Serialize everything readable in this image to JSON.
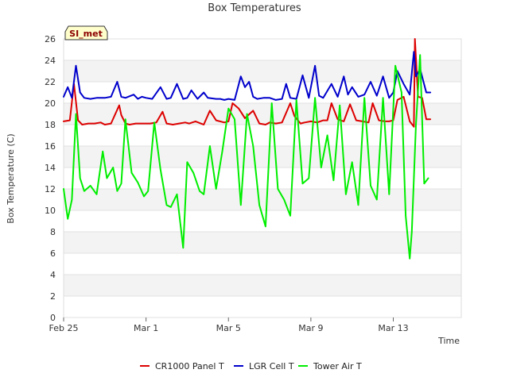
{
  "chart_data": {
    "type": "line",
    "title": "Box Temperatures",
    "xlabel": "Time",
    "ylabel": "Box Temperature (C)",
    "badge": "SI_met",
    "xlim": [
      "Feb 25",
      "Mar 16"
    ],
    "ylim": [
      0,
      26
    ],
    "y_ticks": [
      0,
      2,
      4,
      6,
      8,
      10,
      12,
      14,
      16,
      18,
      20,
      22,
      24,
      26
    ],
    "x_ticks": [
      {
        "label": "Feb 25",
        "day": 0
      },
      {
        "label": "Mar 1",
        "day": 4
      },
      {
        "label": "Mar 5",
        "day": 8
      },
      {
        "label": "Mar 9",
        "day": 12
      },
      {
        "label": "Mar 13",
        "day": 16
      }
    ],
    "x_unit": "days since Feb 25",
    "background_bands": "alternating grey",
    "legend_position": "bottom-center",
    "series": [
      {
        "name": "CR1000 Panel T",
        "color": "#dd0000",
        "x": [
          0.0,
          0.3,
          0.5,
          0.7,
          0.9,
          1.2,
          1.5,
          1.8,
          2.0,
          2.3,
          2.7,
          2.8,
          3.0,
          3.2,
          3.5,
          3.8,
          4.2,
          4.5,
          4.8,
          5.0,
          5.3,
          5.6,
          5.9,
          6.1,
          6.4,
          6.8,
          7.1,
          7.4,
          7.8,
          8.0,
          8.2,
          8.5,
          8.8,
          9.2,
          9.5,
          9.8,
          10.0,
          10.3,
          10.6,
          11.0,
          11.2,
          11.5,
          11.7,
          12.0,
          12.3,
          12.6,
          12.8,
          13.0,
          13.3,
          13.6,
          13.9,
          14.2,
          14.5,
          14.8,
          15.0,
          15.3,
          15.6,
          15.8,
          16.0,
          16.2,
          16.5,
          16.8,
          17.0,
          17.05,
          17.2,
          17.4,
          17.6,
          17.8
        ],
        "y": [
          18.3,
          18.4,
          21.8,
          18.4,
          18.0,
          18.1,
          18.1,
          18.2,
          18.0,
          18.1,
          19.8,
          18.9,
          18.1,
          18.0,
          18.1,
          18.1,
          18.1,
          18.2,
          19.2,
          18.1,
          18.0,
          18.1,
          18.2,
          18.1,
          18.3,
          18.0,
          19.3,
          18.4,
          18.2,
          18.3,
          20.0,
          19.5,
          18.6,
          19.3,
          18.1,
          18.0,
          18.2,
          18.1,
          18.2,
          20.0,
          18.8,
          18.1,
          18.2,
          18.3,
          18.2,
          18.4,
          18.4,
          20.0,
          18.5,
          18.3,
          19.9,
          18.4,
          18.3,
          18.2,
          20.0,
          18.4,
          18.3,
          18.3,
          18.4,
          20.3,
          20.6,
          18.3,
          17.8,
          26.0,
          20.6,
          20.5,
          18.5,
          18.5
        ]
      },
      {
        "name": "LGR Cell T",
        "color": "#0000cc",
        "x": [
          0.0,
          0.2,
          0.4,
          0.6,
          0.8,
          1.0,
          1.3,
          1.6,
          2.0,
          2.3,
          2.6,
          2.8,
          3.0,
          3.4,
          3.6,
          3.8,
          4.0,
          4.3,
          4.7,
          5.0,
          5.2,
          5.5,
          5.8,
          6.0,
          6.2,
          6.5,
          6.8,
          7.0,
          7.4,
          7.6,
          7.8,
          8.0,
          8.3,
          8.6,
          8.8,
          9.0,
          9.2,
          9.4,
          9.7,
          10.0,
          10.3,
          10.6,
          10.8,
          11.0,
          11.3,
          11.6,
          11.9,
          12.2,
          12.4,
          12.6,
          13.0,
          13.3,
          13.6,
          13.8,
          14.0,
          14.3,
          14.6,
          14.9,
          15.2,
          15.5,
          15.8,
          16.0,
          16.2,
          16.5,
          16.8,
          17.0,
          17.1,
          17.3,
          17.6,
          17.8
        ],
        "y": [
          20.6,
          21.5,
          20.5,
          23.5,
          21.0,
          20.5,
          20.4,
          20.5,
          20.5,
          20.6,
          22.0,
          20.6,
          20.5,
          20.8,
          20.4,
          20.6,
          20.5,
          20.4,
          21.5,
          20.4,
          20.5,
          21.8,
          20.4,
          20.5,
          21.2,
          20.4,
          21.0,
          20.5,
          20.4,
          20.4,
          20.3,
          20.4,
          20.3,
          22.5,
          21.5,
          22.0,
          20.6,
          20.4,
          20.5,
          20.5,
          20.3,
          20.4,
          21.8,
          20.5,
          20.4,
          22.6,
          20.5,
          23.5,
          20.7,
          20.5,
          21.8,
          20.6,
          22.5,
          20.8,
          21.5,
          20.6,
          20.8,
          22.0,
          20.7,
          22.5,
          20.5,
          21.0,
          23.0,
          21.8,
          20.8,
          24.8,
          22.5,
          23.2,
          21.0,
          21.0
        ]
      },
      {
        "name": "Tower Air T",
        "color": "#00ee00",
        "x": [
          0.0,
          0.2,
          0.4,
          0.6,
          0.8,
          1.0,
          1.3,
          1.6,
          1.9,
          2.1,
          2.4,
          2.6,
          2.8,
          3.0,
          3.3,
          3.6,
          3.9,
          4.1,
          4.4,
          4.7,
          5.0,
          5.2,
          5.5,
          5.8,
          6.0,
          6.3,
          6.6,
          6.8,
          7.1,
          7.4,
          7.7,
          8.0,
          8.3,
          8.6,
          8.9,
          9.2,
          9.5,
          9.8,
          10.1,
          10.4,
          10.7,
          11.0,
          11.3,
          11.6,
          11.9,
          12.2,
          12.5,
          12.8,
          13.1,
          13.4,
          13.7,
          14.0,
          14.3,
          14.6,
          14.9,
          15.2,
          15.5,
          15.8,
          16.1,
          16.4,
          16.6,
          16.8,
          16.9,
          17.1,
          17.3,
          17.5,
          17.7
        ],
        "y": [
          12.0,
          9.2,
          11.0,
          19.0,
          13.0,
          11.8,
          12.3,
          11.5,
          15.5,
          13.0,
          14.0,
          11.8,
          12.5,
          18.5,
          13.5,
          12.6,
          11.3,
          11.8,
          18.2,
          13.8,
          10.5,
          10.3,
          11.5,
          6.5,
          14.5,
          13.5,
          11.8,
          11.5,
          16.0,
          12.0,
          15.5,
          19.5,
          18.5,
          10.5,
          19.0,
          16.0,
          10.5,
          8.5,
          20.0,
          12.0,
          11.0,
          9.5,
          20.3,
          12.5,
          13.0,
          20.5,
          14.0,
          17.0,
          12.8,
          19.8,
          11.5,
          14.5,
          10.5,
          20.5,
          12.3,
          11.0,
          20.5,
          11.5,
          23.5,
          21.0,
          9.5,
          5.5,
          8.0,
          18.0,
          24.5,
          12.5,
          13.0
        ]
      }
    ]
  }
}
